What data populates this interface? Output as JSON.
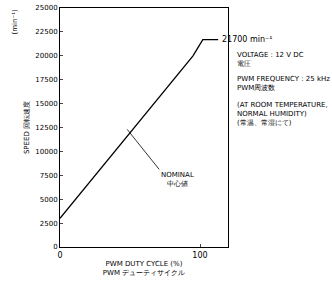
{
  "chart_data": {
    "type": "line",
    "x": [
      0,
      95,
      102,
      113
    ],
    "values": [
      3000,
      20000,
      21700,
      21700
    ],
    "color": "#000000",
    "xlim": [
      0,
      120
    ],
    "xticks": [
      0,
      100
    ],
    "ylim": [
      0,
      25000
    ],
    "yticks": [
      0,
      2500,
      5000,
      7500,
      10000,
      12500,
      15000,
      17500,
      20000,
      22500,
      25000
    ],
    "x_label": [
      "PWM DUTY CYCLE (%)",
      "PWM デューティサイクル"
    ],
    "y_label": [
      "SPEED",
      "回転速度"
    ],
    "y_unit": "(min⁻¹)",
    "grid": false,
    "annotations": [
      {
        "text": [
          "21700 min⁻¹"
        ],
        "x": 113,
        "y": 21700
      },
      {
        "text": [
          "NOMINAL",
          "中心値"
        ],
        "x": 48,
        "y": 12300
      }
    ],
    "notes": [
      [
        "VOLTAGE : 12 V DC",
        "電圧"
      ],
      [
        "PWM FREQUENCY : 25 kHz",
        "PWM周波数"
      ],
      [
        "(AT ROOM TEMPERATURE,",
        "NORMAL HUMIDITY)",
        "(常温、常湿にて)"
      ]
    ]
  }
}
